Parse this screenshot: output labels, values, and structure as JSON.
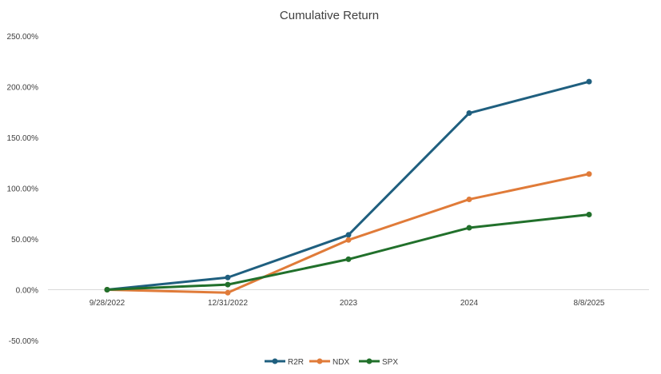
{
  "chart_data": {
    "type": "line",
    "title": "Cumulative Return",
    "categories": [
      "9/28/2022",
      "12/31/2022",
      "2023",
      "2024",
      "8/8/2025"
    ],
    "y_ticks": [
      "250.00%",
      "200.00%",
      "150.00%",
      "100.00%",
      "50.00%",
      "0.00%",
      "-50.00%"
    ],
    "ylim": [
      -50,
      250
    ],
    "y_unit": "%",
    "grid": "horizontal baseline only",
    "legend_position": "bottom",
    "series": [
      {
        "name": "R2R",
        "color": "#1f5f7f",
        "values": [
          0,
          12,
          54,
          174,
          205
        ]
      },
      {
        "name": "NDX",
        "color": "#e07b39",
        "values": [
          0,
          -3,
          49,
          89,
          114
        ]
      },
      {
        "name": "SPX",
        "color": "#21702b",
        "values": [
          0,
          5,
          30,
          61,
          74
        ]
      }
    ]
  }
}
